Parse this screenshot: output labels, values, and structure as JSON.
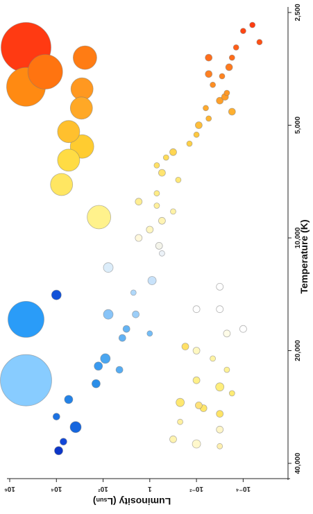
{
  "chart_data": {
    "type": "scatter",
    "title": "",
    "xlabel": "Temperature (K)",
    "ylabel": "Luminosity (L",
    "ylabel_subscript": "sun",
    "ylabel_close": ")",
    "x_scale": "log",
    "x_direction": "decreasing",
    "y_scale": "log",
    "xlim": [
      40000,
      2500
    ],
    "ylim": [
      1e-05,
      1000000
    ],
    "x_ticks": [
      {
        "value": 40000,
        "label": "40,000"
      },
      {
        "value": 20000,
        "label": "20,000"
      },
      {
        "value": 10000,
        "label": "10,000"
      },
      {
        "value": 5000,
        "label": "5,000"
      },
      {
        "value": 2500,
        "label": "2,500"
      }
    ],
    "y_ticks": [
      {
        "value": 1000000,
        "label": "10⁶"
      },
      {
        "value": 10000,
        "label": "10⁴"
      },
      {
        "value": 100,
        "label": "10²"
      },
      {
        "value": 1,
        "label": "1"
      },
      {
        "value": 0.01,
        "label": "10⁻²"
      },
      {
        "value": 0.0001,
        "label": "10⁻⁴"
      }
    ],
    "grid": false,
    "legend": "none",
    "color_scale_note": "point color encodes temperature: blue (hot) to red (cool)",
    "points": [
      {
        "t": 3100,
        "l": 200000,
        "s": 36,
        "c": "#ff3a12"
      },
      {
        "t": 3950,
        "l": 200000,
        "s": 28,
        "c": "#ff8a12"
      },
      {
        "t": 3600,
        "l": 30000,
        "s": 25,
        "c": "#ff7410"
      },
      {
        "t": 3300,
        "l": 600,
        "s": 17,
        "c": "#ff7c14"
      },
      {
        "t": 4000,
        "l": 800,
        "s": 16,
        "c": "#ff9820"
      },
      {
        "t": 4500,
        "l": 850,
        "s": 16,
        "c": "#ffa826"
      },
      {
        "t": 5200,
        "l": 3000,
        "s": 16,
        "c": "#ffc02e"
      },
      {
        "t": 5700,
        "l": 800,
        "s": 17,
        "c": "#ffcc30"
      },
      {
        "t": 6200,
        "l": 3000,
        "s": 16,
        "c": "#ffdc44"
      },
      {
        "t": 7200,
        "l": 6000,
        "s": 16,
        "c": "#ffe662"
      },
      {
        "t": 8800,
        "l": 150,
        "s": 17,
        "c": "#fff28c"
      },
      {
        "t": 24000,
        "l": 200000,
        "s": 37,
        "c": "#88ccff"
      },
      {
        "t": 16500,
        "l": 200000,
        "s": 26,
        "c": "#2a9cf8"
      },
      {
        "t": 14200,
        "l": 10000,
        "s": 7,
        "c": "#1252d8"
      },
      {
        "t": 35000,
        "l": 5000,
        "s": 5,
        "c": "#1248d8"
      },
      {
        "t": 37000,
        "l": 8000,
        "s": 6,
        "c": "#0c36c8"
      },
      {
        "t": 32000,
        "l": 1500,
        "s": 8,
        "c": "#1666de"
      },
      {
        "t": 30000,
        "l": 10000,
        "s": 5,
        "c": "#1c72e2"
      },
      {
        "t": 27000,
        "l": 3000,
        "s": 6,
        "c": "#2482e6"
      },
      {
        "t": 24500,
        "l": 200,
        "s": 6,
        "c": "#2a8ee8"
      },
      {
        "t": 22000,
        "l": 160,
        "s": 6,
        "c": "#3a9af0"
      },
      {
        "t": 21000,
        "l": 80,
        "s": 7,
        "c": "#4aa6f0"
      },
      {
        "t": 22500,
        "l": 20,
        "s": 5,
        "c": "#56acf2"
      },
      {
        "t": 18500,
        "l": 15,
        "s": 5,
        "c": "#62b2f4"
      },
      {
        "t": 17500,
        "l": 10,
        "s": 5,
        "c": "#64b4f4"
      },
      {
        "t": 18000,
        "l": 1,
        "s": 4,
        "c": "#74bcf6"
      },
      {
        "t": 16000,
        "l": 60,
        "s": 7,
        "c": "#88c4f8"
      },
      {
        "t": 16000,
        "l": 4,
        "s": 5,
        "c": "#9ccef8"
      },
      {
        "t": 14000,
        "l": 5,
        "s": 4,
        "c": "#b0d8fa"
      },
      {
        "t": 13000,
        "l": 0.8,
        "s": 6,
        "c": "#c8e2fa"
      },
      {
        "t": 12000,
        "l": 60,
        "s": 7,
        "c": "#dcedfa"
      },
      {
        "t": 11000,
        "l": 0.3,
        "s": 4,
        "c": "#ecf2f8"
      },
      {
        "t": 10500,
        "l": 0.4,
        "s": 5,
        "c": "#f4f4ea"
      },
      {
        "t": 10000,
        "l": 3,
        "s": 5,
        "c": "#fff8dc"
      },
      {
        "t": 9500,
        "l": 1,
        "s": 5,
        "c": "#fff6c0"
      },
      {
        "t": 9000,
        "l": 0.3,
        "s": 5,
        "c": "#fff4b4"
      },
      {
        "t": 8500,
        "l": 0.1,
        "s": 4,
        "c": "#fff2a6"
      },
      {
        "t": 8200,
        "l": 0.5,
        "s": 4,
        "c": "#fff09c"
      },
      {
        "t": 8000,
        "l": 3,
        "s": 5,
        "c": "#ffee92"
      },
      {
        "t": 7600,
        "l": 0.5,
        "s": 4,
        "c": "#ffec86"
      },
      {
        "t": 7000,
        "l": 0.06,
        "s": 4,
        "c": "#ffe878"
      },
      {
        "t": 6700,
        "l": 0.3,
        "s": 5,
        "c": "#ffe470"
      },
      {
        "t": 6400,
        "l": 0.5,
        "s": 4,
        "c": "#ffe066"
      },
      {
        "t": 6100,
        "l": 0.2,
        "s": 4,
        "c": "#ffdc5a"
      },
      {
        "t": 5900,
        "l": 0.1,
        "s": 5,
        "c": "#ffd652"
      },
      {
        "t": 5600,
        "l": 0.02,
        "s": 4,
        "c": "#ffd048"
      },
      {
        "t": 5300,
        "l": 0.01,
        "s": 4,
        "c": "#ffc840"
      },
      {
        "t": 5000,
        "l": 0.008,
        "s": 5,
        "c": "#ffbe3a"
      },
      {
        "t": 4800,
        "l": 0.003,
        "s": 4,
        "c": "#ffb432"
      },
      {
        "t": 4500,
        "l": 0.004,
        "s": 4,
        "c": "#ffaa2e"
      },
      {
        "t": 4300,
        "l": 0.001,
        "s": 5,
        "c": "#ffa02a"
      },
      {
        "t": 4100,
        "l": 0.0005,
        "s": 4,
        "c": "#ff9826"
      },
      {
        "t": 3900,
        "l": 0.002,
        "s": 4,
        "c": "#ff8e22"
      },
      {
        "t": 3700,
        "l": 0.0008,
        "s": 4,
        "c": "#ff8420"
      },
      {
        "t": 3500,
        "l": 0.0004,
        "s": 5,
        "c": "#ff7a1e"
      },
      {
        "t": 3300,
        "l": 0.0003,
        "s": 4,
        "c": "#ff6c1a"
      },
      {
        "t": 3100,
        "l": 0.0002,
        "s": 4,
        "c": "#ff5e18"
      },
      {
        "t": 3000,
        "l": 2e-05,
        "s": 4,
        "c": "#ff5014"
      },
      {
        "t": 2800,
        "l": 0.0001,
        "s": 4,
        "c": "#ff4612"
      },
      {
        "t": 2700,
        "l": 4e-05,
        "s": 4,
        "c": "#ff3c10"
      },
      {
        "t": 3300,
        "l": 0.003,
        "s": 5,
        "c": "#ff6e1c"
      },
      {
        "t": 3650,
        "l": 0.003,
        "s": 5,
        "c": "#ff8022"
      },
      {
        "t": 4200,
        "l": 0.0006,
        "s": 5,
        "c": "#ff9c28"
      },
      {
        "t": 4600,
        "l": 0.0003,
        "s": 5,
        "c": "#ffb030"
      },
      {
        "t": 13500,
        "l": 0.001,
        "s": 5,
        "c": "#ffffff"
      },
      {
        "t": 15500,
        "l": 0.01,
        "s": 5,
        "c": "#ffffff"
      },
      {
        "t": 15500,
        "l": 0.001,
        "s": 5,
        "c": "#ffffff"
      },
      {
        "t": 17500,
        "l": 0.0001,
        "s": 5,
        "c": "#ffffff"
      },
      {
        "t": 18000,
        "l": 0.0005,
        "s": 5,
        "c": "#fffce8"
      },
      {
        "t": 20000,
        "l": 0.01,
        "s": 5,
        "c": "#fff8c0"
      },
      {
        "t": 21000,
        "l": 0.002,
        "s": 4,
        "c": "#fff4a4"
      },
      {
        "t": 22500,
        "l": 0.0005,
        "s": 4,
        "c": "#fff296"
      },
      {
        "t": 24000,
        "l": 0.01,
        "s": 5,
        "c": "#fff088"
      },
      {
        "t": 25000,
        "l": 0.001,
        "s": 6,
        "c": "#ffee7c"
      },
      {
        "t": 26000,
        "l": 0.0003,
        "s": 4,
        "c": "#ffec74"
      },
      {
        "t": 27500,
        "l": 0.05,
        "s": 6,
        "c": "#ffe870"
      },
      {
        "t": 28500,
        "l": 0.005,
        "s": 5,
        "c": "#ffe66a"
      },
      {
        "t": 29500,
        "l": 0.001,
        "s": 5,
        "c": "#ffe466"
      },
      {
        "t": 31000,
        "l": 0.05,
        "s": 4,
        "c": "#fff0a0"
      },
      {
        "t": 32500,
        "l": 0.001,
        "s": 5,
        "c": "#fff6c8"
      },
      {
        "t": 34500,
        "l": 0.1,
        "s": 5,
        "c": "#fff4b0"
      },
      {
        "t": 35500,
        "l": 0.01,
        "s": 6,
        "c": "#fff8cc"
      },
      {
        "t": 36000,
        "l": 0.001,
        "s": 4,
        "c": "#fff0b0"
      },
      {
        "t": 19500,
        "l": 0.03,
        "s": 5,
        "c": "#ffe066"
      },
      {
        "t": 28000,
        "l": 0.008,
        "s": 5,
        "c": "#ffe27a"
      }
    ]
  }
}
